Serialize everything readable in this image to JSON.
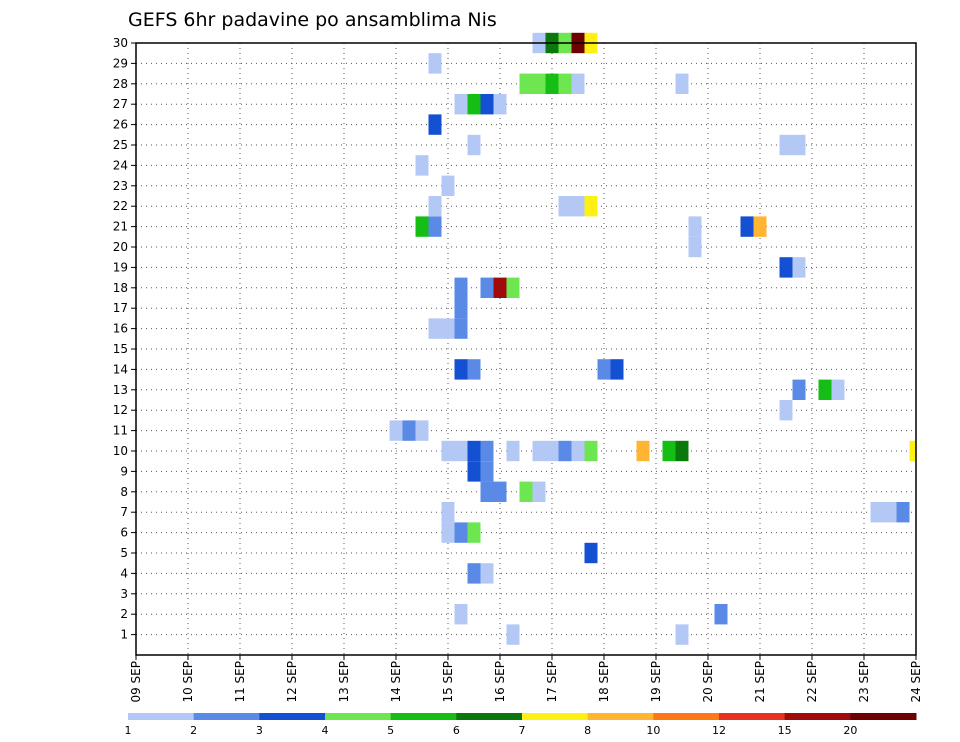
{
  "chart_data": {
    "type": "heatmap",
    "title": "GEFS 6hr padavine po ansamblima Nis",
    "x_tick_labels": [
      "09 SEP",
      "10 SEP",
      "11 SEP",
      "12 SEP",
      "13 SEP",
      "14 SEP",
      "15 SEP",
      "16 SEP",
      "17 SEP",
      "18 SEP",
      "19 SEP",
      "20 SEP",
      "21 SEP",
      "22 SEP",
      "23 SEP",
      "24 SEP"
    ],
    "y_tick_labels": [
      "1",
      "2",
      "3",
      "4",
      "5",
      "6",
      "7",
      "8",
      "9",
      "10",
      "11",
      "12",
      "13",
      "14",
      "15",
      "16",
      "17",
      "18",
      "19",
      "20",
      "21",
      "22",
      "23",
      "24",
      "25",
      "26",
      "27",
      "28",
      "29",
      "30"
    ],
    "xlim": [
      9,
      24
    ],
    "ylim": [
      0,
      30
    ],
    "grid": true,
    "colorbar": {
      "levels": [
        1,
        2,
        3,
        4,
        5,
        6,
        7,
        8,
        10,
        12,
        15,
        20
      ],
      "labels": [
        "1",
        "2",
        "3",
        "4",
        "5",
        "6",
        "7",
        "8",
        "10",
        "12",
        "15",
        "20"
      ],
      "colors": [
        "#b4c8f5",
        "#5a8ae6",
        "#1450d2",
        "#6ee650",
        "#14be14",
        "#0a780a",
        "#fff014",
        "#ffb432",
        "#ff7814",
        "#e6321e",
        "#a00a0a",
        "#6e0000"
      ]
    },
    "cells": [
      {
        "member": 1,
        "x": 16.25,
        "c": 0
      },
      {
        "member": 1,
        "x": 19.5,
        "c": 0
      },
      {
        "member": 2,
        "x": 15.25,
        "c": 0
      },
      {
        "member": 2,
        "x": 20.25,
        "c": 1
      },
      {
        "member": 4,
        "x": 15.5,
        "c": 1
      },
      {
        "member": 4,
        "x": 15.75,
        "c": 0
      },
      {
        "member": 5,
        "x": 17.75,
        "c": 2
      },
      {
        "member": 6,
        "x": 15.0,
        "c": 0
      },
      {
        "member": 6,
        "x": 15.25,
        "c": 1
      },
      {
        "member": 6,
        "x": 15.5,
        "c": 3
      },
      {
        "member": 7,
        "x": 15.0,
        "c": 0
      },
      {
        "member": 7,
        "x": 23.25,
        "c": 0
      },
      {
        "member": 7,
        "x": 23.5,
        "c": 0
      },
      {
        "member": 7,
        "x": 23.75,
        "c": 1
      },
      {
        "member": 8,
        "x": 15.75,
        "c": 1
      },
      {
        "member": 8,
        "x": 16.0,
        "c": 1
      },
      {
        "member": 8,
        "x": 16.5,
        "c": 3
      },
      {
        "member": 8,
        "x": 16.75,
        "c": 0
      },
      {
        "member": 9,
        "x": 15.5,
        "c": 2
      },
      {
        "member": 9,
        "x": 15.75,
        "c": 1
      },
      {
        "member": 10,
        "x": 15.0,
        "c": 0
      },
      {
        "member": 10,
        "x": 15.25,
        "c": 0
      },
      {
        "member": 10,
        "x": 15.5,
        "c": 2
      },
      {
        "member": 10,
        "x": 15.75,
        "c": 1
      },
      {
        "member": 10,
        "x": 16.25,
        "c": 0
      },
      {
        "member": 10,
        "x": 16.75,
        "c": 0
      },
      {
        "member": 10,
        "x": 17.0,
        "c": 0
      },
      {
        "member": 10,
        "x": 17.25,
        "c": 1
      },
      {
        "member": 10,
        "x": 17.5,
        "c": 0
      },
      {
        "member": 10,
        "x": 17.75,
        "c": 3
      },
      {
        "member": 10,
        "x": 18.75,
        "c": 7
      },
      {
        "member": 10,
        "x": 19.25,
        "c": 4
      },
      {
        "member": 10,
        "x": 19.5,
        "c": 5
      },
      {
        "member": 10,
        "x": 24.0,
        "c": 6
      },
      {
        "member": 11,
        "x": 14.0,
        "c": 0
      },
      {
        "member": 11,
        "x": 14.25,
        "c": 1
      },
      {
        "member": 11,
        "x": 14.5,
        "c": 0
      },
      {
        "member": 12,
        "x": 21.5,
        "c": 0
      },
      {
        "member": 13,
        "x": 21.75,
        "c": 1
      },
      {
        "member": 13,
        "x": 22.25,
        "c": 4
      },
      {
        "member": 13,
        "x": 22.5,
        "c": 0
      },
      {
        "member": 14,
        "x": 15.25,
        "c": 2
      },
      {
        "member": 14,
        "x": 15.5,
        "c": 1
      },
      {
        "member": 14,
        "x": 18.0,
        "c": 1
      },
      {
        "member": 14,
        "x": 18.25,
        "c": 2
      },
      {
        "member": 16,
        "x": 14.75,
        "c": 0
      },
      {
        "member": 16,
        "x": 15.0,
        "c": 0
      },
      {
        "member": 16,
        "x": 15.25,
        "c": 1
      },
      {
        "member": 17,
        "x": 15.25,
        "c": 1
      },
      {
        "member": 18,
        "x": 15.25,
        "c": 1
      },
      {
        "member": 18,
        "x": 15.75,
        "c": 1
      },
      {
        "member": 18,
        "x": 16.0,
        "c": 10
      },
      {
        "member": 18,
        "x": 16.25,
        "c": 3
      },
      {
        "member": 19,
        "x": 21.5,
        "c": 2
      },
      {
        "member": 19,
        "x": 21.75,
        "c": 0
      },
      {
        "member": 20,
        "x": 19.75,
        "c": 0
      },
      {
        "member": 21,
        "x": 14.5,
        "c": 4
      },
      {
        "member": 21,
        "x": 14.75,
        "c": 1
      },
      {
        "member": 21,
        "x": 19.75,
        "c": 0
      },
      {
        "member": 21,
        "x": 20.75,
        "c": 2
      },
      {
        "member": 21,
        "x": 21.0,
        "c": 7
      },
      {
        "member": 22,
        "x": 14.75,
        "c": 0
      },
      {
        "member": 22,
        "x": 17.25,
        "c": 0
      },
      {
        "member": 22,
        "x": 17.5,
        "c": 0
      },
      {
        "member": 22,
        "x": 17.75,
        "c": 6
      },
      {
        "member": 23,
        "x": 15.0,
        "c": 0
      },
      {
        "member": 24,
        "x": 14.5,
        "c": 0
      },
      {
        "member": 25,
        "x": 15.5,
        "c": 0
      },
      {
        "member": 25,
        "x": 21.5,
        "c": 0
      },
      {
        "member": 25,
        "x": 21.75,
        "c": 0
      },
      {
        "member": 26,
        "x": 14.75,
        "c": 2
      },
      {
        "member": 27,
        "x": 15.25,
        "c": 0
      },
      {
        "member": 27,
        "x": 15.5,
        "c": 4
      },
      {
        "member": 27,
        "x": 15.75,
        "c": 2
      },
      {
        "member": 27,
        "x": 16.0,
        "c": 0
      },
      {
        "member": 28,
        "x": 16.5,
        "c": 3
      },
      {
        "member": 28,
        "x": 16.75,
        "c": 3
      },
      {
        "member": 28,
        "x": 17.0,
        "c": 4
      },
      {
        "member": 28,
        "x": 17.25,
        "c": 3
      },
      {
        "member": 28,
        "x": 17.5,
        "c": 0
      },
      {
        "member": 28,
        "x": 19.5,
        "c": 0
      },
      {
        "member": 29,
        "x": 14.75,
        "c": 0
      },
      {
        "member": 30,
        "x": 16.75,
        "c": 0
      },
      {
        "member": 30,
        "x": 17.0,
        "c": 5
      },
      {
        "member": 30,
        "x": 17.25,
        "c": 3
      },
      {
        "member": 30,
        "x": 17.5,
        "c": 11
      },
      {
        "member": 30,
        "x": 17.75,
        "c": 6
      }
    ]
  }
}
